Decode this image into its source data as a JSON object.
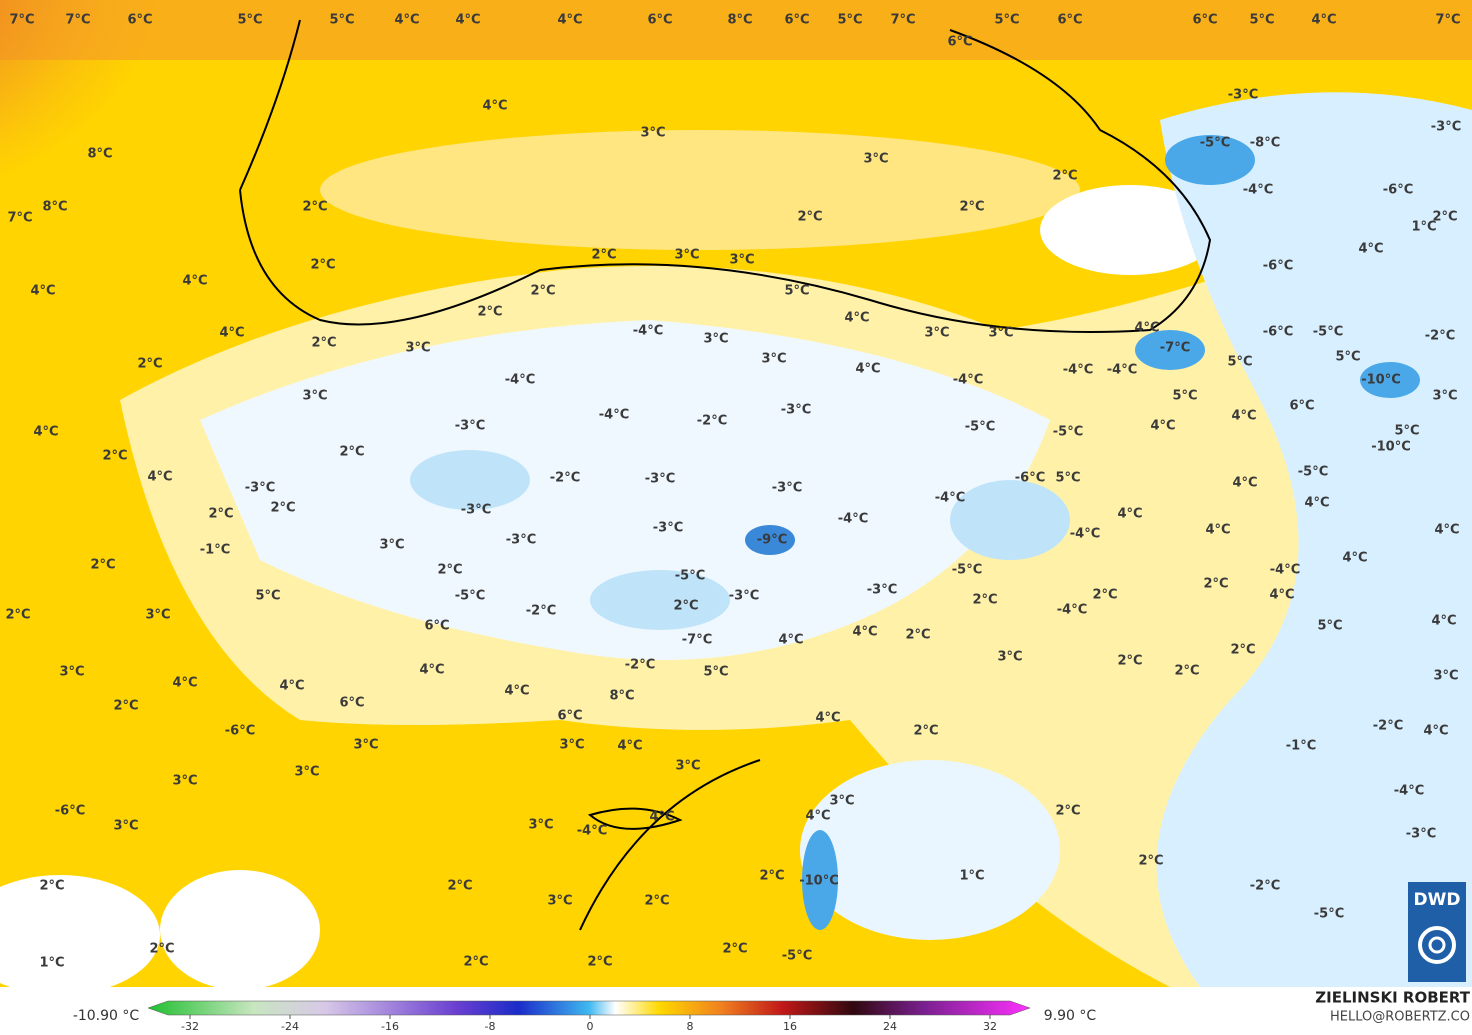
{
  "map": {
    "temperature_labels": [
      "7°C",
      "7°C",
      "6°C",
      "5°C",
      "5°C",
      "4°C",
      "4°C",
      "4°C",
      "6°C",
      "8°C",
      "6°C",
      "5°C",
      "7°C",
      "5°C",
      "6°C",
      "6°C",
      "5°C",
      "4°C",
      "7°C",
      "6°C",
      "4°C",
      "3°C",
      "3°C",
      "8°C",
      "7°C",
      "8°C",
      "2°C",
      "2°C",
      "2°C",
      "2°C",
      "2°C",
      "4°C",
      "4°C",
      "-3°C",
      "-5°C",
      "-8°C",
      "-3°C",
      "-4°C",
      "-6°C",
      "2°C",
      "1°C",
      "4°C",
      "-6°C",
      "2°C",
      "3°C",
      "3°C",
      "2°C",
      "5°C",
      "2°C",
      "4°C",
      "3°C",
      "3°C",
      "4°C",
      "-7°C",
      "-6°C",
      "-5°C",
      "-2°C",
      "4°C",
      "2°C",
      "3°C",
      "-4°C",
      "3°C",
      "3°C",
      "4°C",
      "-4°C",
      "-4°C",
      "-4°C",
      "5°C",
      "5°C",
      "-10°C",
      "2°C",
      "3°C",
      "-4°C",
      "-4°C",
      "-3°C",
      "5°C",
      "6°C",
      "3°C",
      "4°C",
      "-3°C",
      "-2°C",
      "-5°C",
      "-5°C",
      "4°C",
      "4°C",
      "5°C",
      "-10°C",
      "2°C",
      "2°C",
      "-2°C",
      "-3°C",
      "-6°C",
      "5°C",
      "-5°C",
      "4°C",
      "-3°C",
      "-3°C",
      "4°C",
      "2°C",
      "2°C",
      "-3°C",
      "-4°C",
      "4°C",
      "4°C",
      "-4°C",
      "-3°C",
      "-4°C",
      "4°C",
      "4°C",
      "-1°C",
      "3°C",
      "-3°C",
      "-9°C",
      "4°C",
      "2°C",
      "2°C",
      "-5°C",
      "-5°C",
      "-4°C",
      "2°C",
      "2°C",
      "5°C",
      "-5°C",
      "-3°C",
      "-3°C",
      "2°C",
      "4°C",
      "2°C",
      "3°C",
      "-2°C",
      "2°C",
      "-4°C",
      "6°C",
      "-7°C",
      "4°C",
      "4°C",
      "2°C",
      "5°C",
      "4°C",
      "3°C",
      "2°C",
      "2°C",
      "3°C",
      "-2°C",
      "4°C",
      "5°C",
      "2°C",
      "4°C",
      "4°C",
      "3°C",
      "4°C",
      "8°C",
      "2°C",
      "6°C",
      "6°C",
      "4°C",
      "-6°C",
      "2°C",
      "-2°C",
      "4°C",
      "3°C",
      "3°C",
      "4°C",
      "-1°C",
      "3°C",
      "3°C",
      "3°C",
      "-4°C",
      "3°C",
      "-6°C",
      "2°C",
      "4°C",
      "4°C",
      "3°C",
      "3°C",
      "-4°C",
      "-3°C",
      "2°C",
      "1°C",
      "-10°C",
      "2°C",
      "-2°C",
      "2°C",
      "2°C",
      "3°C",
      "2°C",
      "-5°C",
      "2°C",
      "2°C",
      "1°C",
      "2°C",
      "2°C",
      "-5°C"
    ],
    "colorbar": {
      "min_label": "-10.90 °C",
      "max_label": "9.90 °C",
      "ticks": [
        -32,
        -24,
        -16,
        -8,
        0,
        8,
        16,
        24,
        32
      ]
    },
    "author": "ZIELINSKI ROBERT",
    "email": "HELLO@ROBERTZ.CO",
    "logo": "DWD"
  }
}
